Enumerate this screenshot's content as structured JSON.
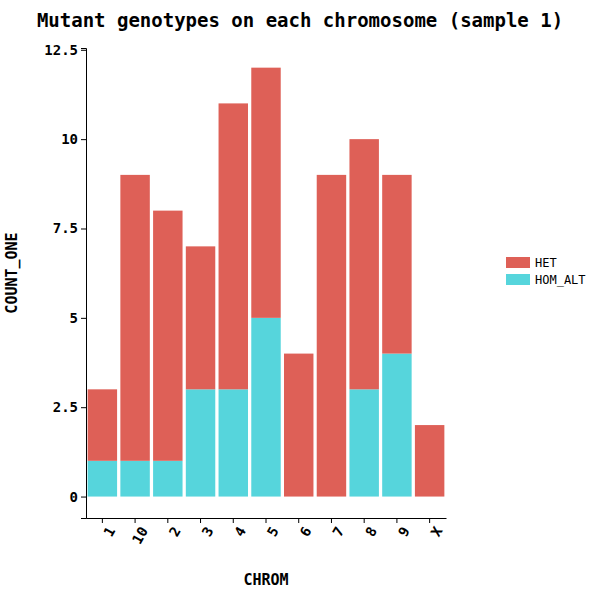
{
  "chart_data": {
    "type": "bar",
    "title": "Mutant genotypes on each chromosome (sample 1)",
    "x_label": "CHROM",
    "y_label": "COUNT_ONE",
    "categories": [
      "1",
      "10",
      "2",
      "3",
      "4",
      "5",
      "6",
      "7",
      "8",
      "9",
      "X"
    ],
    "series": [
      {
        "name": "HET",
        "color": "#de6057",
        "values": [
          2,
          8,
          7,
          4,
          8,
          7,
          4,
          9,
          7,
          5,
          2
        ]
      },
      {
        "name": "HOM_ALT",
        "color": "#56d5dc",
        "values": [
          1,
          1,
          1,
          3,
          3,
          5,
          0,
          0,
          3,
          4,
          0
        ]
      }
    ],
    "stacked": true,
    "legend": "right",
    "ylim": [
      -0.6,
      12.55
    ],
    "yticks": [
      0,
      2.5,
      5,
      7.5,
      10,
      12.5
    ]
  }
}
